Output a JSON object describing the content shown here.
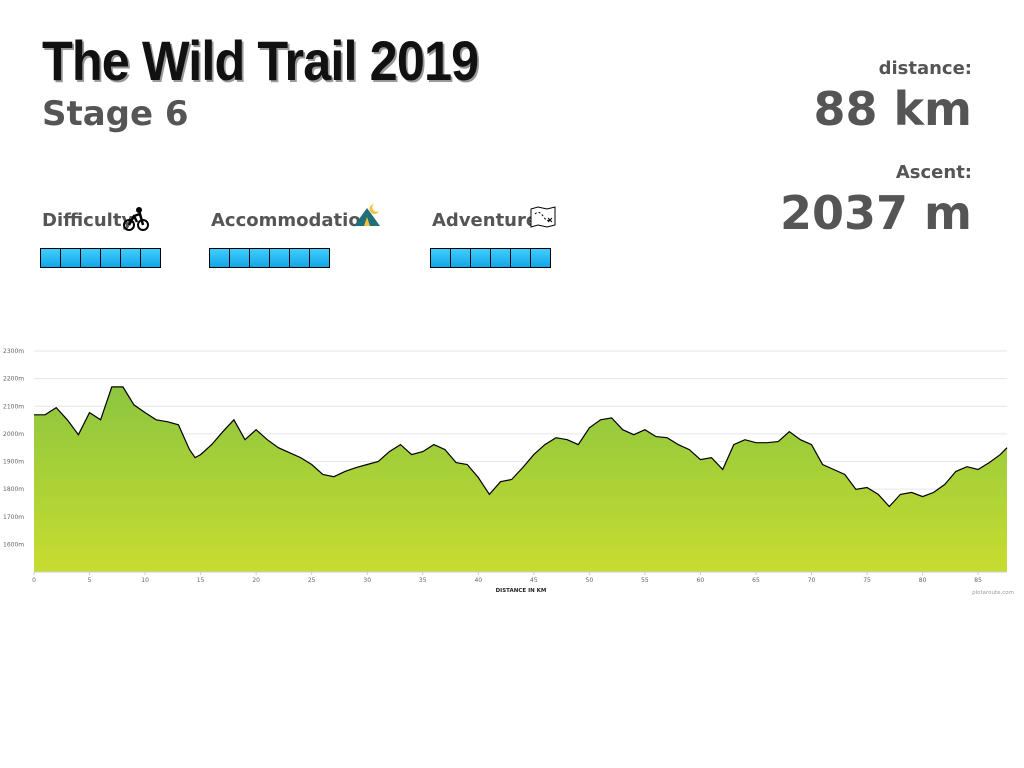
{
  "header": {
    "title": "The Wild Trail 2019",
    "subtitle": "Stage 6"
  },
  "stats": [
    {
      "label": "distance:",
      "value": "88 km"
    },
    {
      "label": "Ascent:",
      "value": "2037 m"
    }
  ],
  "ratings": [
    {
      "label": "Difficulty",
      "value": 6
    },
    {
      "label": "Accommodation",
      "value": 6
    },
    {
      "label": "Adventure",
      "value": 6
    }
  ],
  "chart_data": {
    "type": "area",
    "x_label": "DISTANCE IN KM",
    "credit": "plotaroute.com",
    "color": "#000000",
    "fill_top": "#8cc63f",
    "fill_bottom": "#c8dc30",
    "grid": true,
    "x": [
      0,
      1,
      2,
      3,
      4,
      5,
      6,
      7,
      8,
      9,
      10,
      11,
      12,
      13,
      14,
      14.5,
      15,
      16,
      17,
      18,
      19,
      20,
      21,
      22,
      23,
      24,
      25,
      26,
      27,
      28,
      29,
      30,
      31,
      32,
      33,
      34,
      35,
      36,
      37,
      38,
      39,
      40,
      41,
      42,
      43,
      44,
      45,
      46,
      47,
      48,
      49,
      50,
      51,
      52,
      53,
      54,
      55,
      56,
      57,
      58,
      59,
      60,
      61,
      62,
      63,
      64,
      65,
      66,
      67,
      68,
      69,
      70,
      71,
      72,
      73,
      74,
      75,
      76,
      77,
      78,
      79,
      80,
      81,
      82,
      83,
      84,
      85,
      86,
      87,
      87.6
    ],
    "values": [
      2069,
      2069,
      2095,
      2051,
      1997,
      2077,
      2051,
      2170,
      2170,
      2105,
      2077,
      2051,
      2044,
      2033,
      1943,
      1914,
      1925,
      1961,
      2008,
      2051,
      1979,
      2015,
      1979,
      1950,
      1932,
      1914,
      1889,
      1853,
      1845,
      1864,
      1878,
      1889,
      1900,
      1936,
      1961,
      1925,
      1936,
      1961,
      1943,
      1896,
      1889,
      1842,
      1781,
      1827,
      1835,
      1878,
      1925,
      1961,
      1986,
      1979,
      1961,
      2022,
      2051,
      2058,
      2015,
      1997,
      2015,
      1990,
      1986,
      1961,
      1943,
      1907,
      1914,
      1871,
      1961,
      1979,
      1968,
      1968,
      1972,
      2008,
      1979,
      1961,
      1889,
      1871,
      1853,
      1799,
      1806,
      1781,
      1737,
      1781,
      1788,
      1773,
      1788,
      1817,
      1864,
      1881,
      1871,
      1896,
      1925,
      1950
    ],
    "xlim": [
      0,
      87.6
    ],
    "xticks": [
      0,
      5,
      10,
      15,
      20,
      25,
      30,
      35,
      40,
      45,
      50,
      55,
      60,
      65,
      70,
      75,
      80,
      85
    ],
    "ylim": [
      1500,
      2300
    ],
    "yticks": [
      {
        "value": 1600,
        "label": "1600m"
      },
      {
        "value": 1700,
        "label": "1700m"
      },
      {
        "value": 1800,
        "label": "1800m"
      },
      {
        "value": 1900,
        "label": "1900m"
      },
      {
        "value": 2000,
        "label": "2000m"
      },
      {
        "value": 2100,
        "label": "2100m"
      },
      {
        "value": 2200,
        "label": "2200m"
      },
      {
        "value": 2300,
        "label": "2300m"
      }
    ]
  }
}
